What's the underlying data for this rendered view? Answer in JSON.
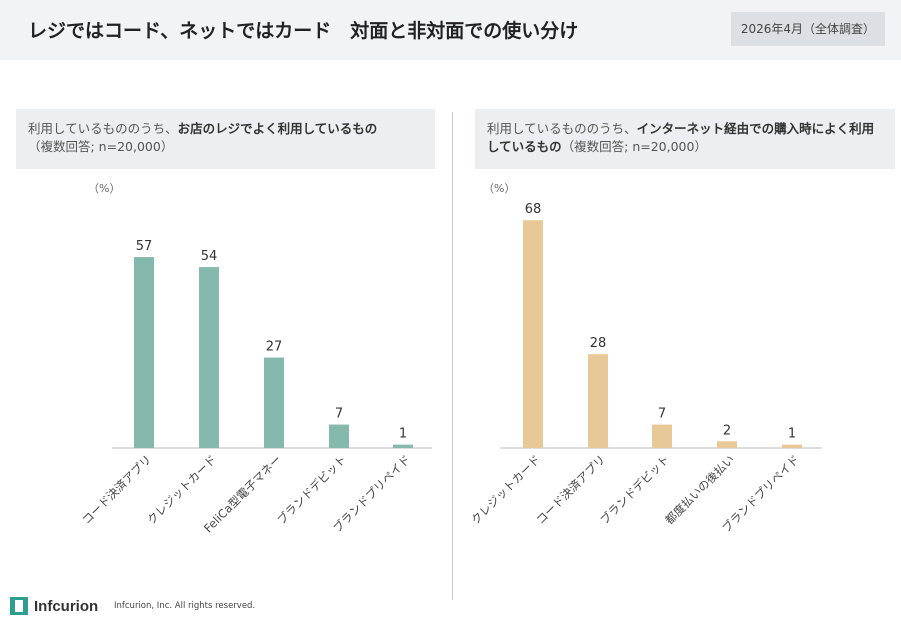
{
  "header": {
    "title": "レジではコード、ネットではカード　対面と非対面での使い分け",
    "date_badge": "2026年4月（全体調査）"
  },
  "left_panel": {
    "prefix": "利用しているもののうち、",
    "emphasis": "お店のレジでよく利用しているもの",
    "suffix": "（複数回答; n=20,000）"
  },
  "right_panel": {
    "prefix": "利用しているもののうち、",
    "emphasis": "インターネット経由での購入時によく利用しているもの",
    "suffix": "（複数回答; n=20,000）"
  },
  "chart_data": [
    {
      "type": "bar",
      "unit": "（%）",
      "categories": [
        "コード決済アプリ",
        "クレジットカード",
        "FeliCa型電子マネー",
        "ブランドデビット",
        "ブランドプリペイド"
      ],
      "values": [
        57,
        54,
        27,
        7,
        1
      ],
      "color": "#86b9ae"
    },
    {
      "type": "bar",
      "unit": "（%）",
      "categories": [
        "クレジットカード",
        "コード決済アプリ",
        "ブランドデビット",
        "都度払いの後払い",
        "ブランドプリペイド"
      ],
      "values": [
        68,
        28,
        7,
        2,
        1
      ],
      "color": "#e9c897"
    }
  ],
  "footer": {
    "logo": "Infcurion",
    "copyright": "Infcurion, Inc.  All rights reserved."
  }
}
